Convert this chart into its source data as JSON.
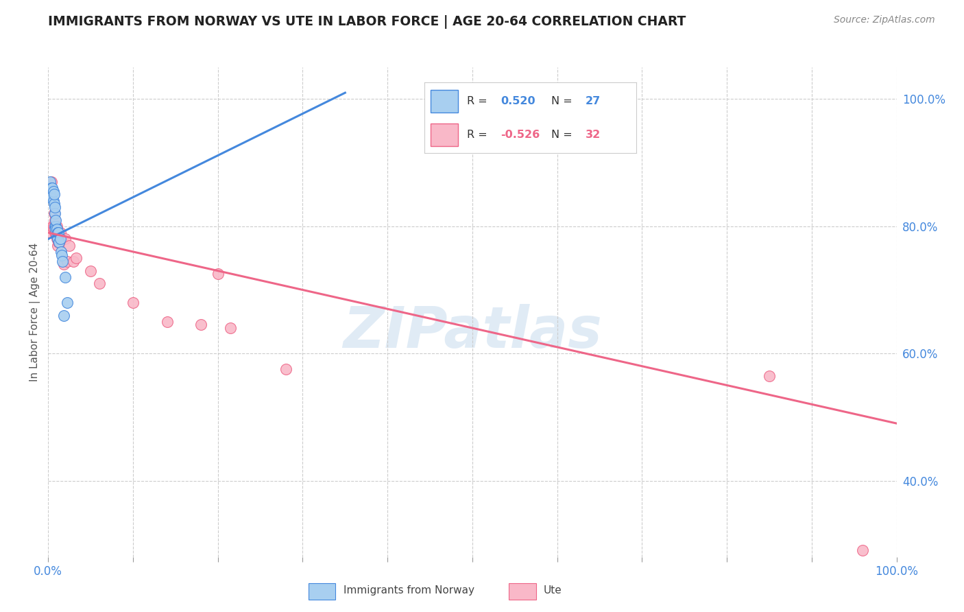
{
  "title": "IMMIGRANTS FROM NORWAY VS UTE IN LABOR FORCE | AGE 20-64 CORRELATION CHART",
  "source": "Source: ZipAtlas.com",
  "ylabel": "In Labor Force | Age 20-64",
  "xlim": [
    0.0,
    1.0
  ],
  "ylim": [
    0.28,
    1.05
  ],
  "yticks": [
    0.4,
    0.6,
    0.8,
    1.0
  ],
  "ytick_labels": [
    "40.0%",
    "60.0%",
    "80.0%",
    "100.0%"
  ],
  "norway_R": 0.52,
  "norway_N": 27,
  "ute_R": -0.526,
  "ute_N": 32,
  "norway_color": "#A8CFF0",
  "ute_color": "#F9B8C8",
  "norway_line_color": "#4488DD",
  "ute_line_color": "#EE6688",
  "norway_x": [
    0.002,
    0.003,
    0.004,
    0.005,
    0.006,
    0.006,
    0.007,
    0.007,
    0.008,
    0.008,
    0.008,
    0.009,
    0.009,
    0.009,
    0.01,
    0.01,
    0.011,
    0.011,
    0.012,
    0.013,
    0.014,
    0.015,
    0.016,
    0.017,
    0.018,
    0.02,
    0.022
  ],
  "norway_y": [
    0.87,
    0.845,
    0.86,
    0.86,
    0.84,
    0.855,
    0.835,
    0.85,
    0.82,
    0.83,
    0.8,
    0.8,
    0.795,
    0.81,
    0.795,
    0.785,
    0.79,
    0.78,
    0.79,
    0.775,
    0.78,
    0.76,
    0.755,
    0.745,
    0.66,
    0.72,
    0.68
  ],
  "ute_x": [
    0.003,
    0.004,
    0.005,
    0.006,
    0.007,
    0.007,
    0.008,
    0.008,
    0.009,
    0.01,
    0.01,
    0.011,
    0.012,
    0.013,
    0.014,
    0.016,
    0.018,
    0.02,
    0.022,
    0.025,
    0.03,
    0.033,
    0.05,
    0.06,
    0.1,
    0.14,
    0.18,
    0.2,
    0.215,
    0.28,
    0.85,
    0.96
  ],
  "ute_y": [
    0.79,
    0.87,
    0.8,
    0.8,
    0.795,
    0.82,
    0.81,
    0.79,
    0.79,
    0.8,
    0.78,
    0.77,
    0.775,
    0.785,
    0.79,
    0.78,
    0.74,
    0.78,
    0.745,
    0.77,
    0.745,
    0.75,
    0.73,
    0.71,
    0.68,
    0.65,
    0.645,
    0.725,
    0.64,
    0.575,
    0.565,
    0.29
  ],
  "norway_line_x0": 0.0,
  "norway_line_x1": 0.35,
  "norway_line_y0": 0.78,
  "norway_line_y1": 1.01,
  "ute_line_x0": 0.0,
  "ute_line_x1": 1.0,
  "ute_line_y0": 0.79,
  "ute_line_y1": 0.49,
  "watermark": "ZIPatlas",
  "background_color": "#FFFFFF",
  "grid_color": "#CCCCCC"
}
